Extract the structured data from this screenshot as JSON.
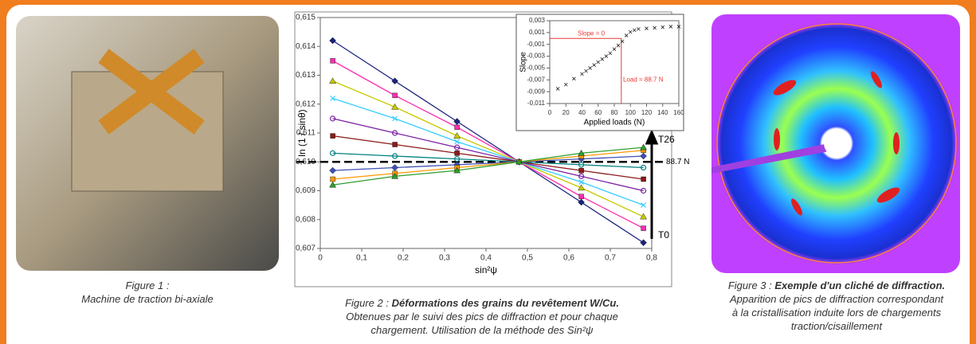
{
  "captions": [
    {
      "label": "Figure 1 : ",
      "bold": "",
      "lines": [
        "Machine de traction bi-axiale"
      ]
    },
    {
      "label": "Figure 2 : ",
      "bold": "Déformations des grains du revêtement W/Cu.",
      "lines": [
        "Obtenues par le suivi des pics de diffraction et pour chaque",
        "chargement. Utilisation de la méthode des Sin²ψ"
      ]
    },
    {
      "label": "Figure 3 : ",
      "bold": "Exemple d'un cliché de diffraction.",
      "lines": [
        "Apparition de pics de diffraction correspondant",
        "à la cristallisation induite lors de chargements",
        "traction/cisaillement"
      ]
    }
  ],
  "chart_data": [
    {
      "type": "scatter-line",
      "xlabel": "sin²ψ",
      "ylabel": "ln (1 / sinθ)",
      "x": [
        0.03,
        0.18,
        0.33,
        0.48,
        0.63,
        0.78
      ],
      "xlim": [
        0,
        0.8
      ],
      "xticks": [
        0,
        {
          "value": 0.1,
          "label": "0,1"
        },
        {
          "value": 0.2,
          "label": "0,2"
        },
        {
          "value": 0.3,
          "label": "0,3"
        },
        {
          "value": 0.4,
          "label": "0,4"
        },
        {
          "value": 0.5,
          "label": "0,5"
        },
        {
          "value": 0.6,
          "label": "0,6"
        },
        {
          "value": 0.7,
          "label": "0,7"
        },
        {
          "value": 0.8,
          "label": "0,8"
        }
      ],
      "ylim": [
        0.607,
        0.615
      ],
      "yticks": [
        {
          "value": 0.607,
          "label": "0,607"
        },
        {
          "value": 0.608,
          "label": "0,608"
        },
        {
          "value": 0.609,
          "label": "0,609"
        },
        {
          "value": 0.61,
          "label": "0,610"
        },
        {
          "value": 0.611,
          "label": "0,611"
        },
        {
          "value": 0.612,
          "label": "0,612"
        },
        {
          "value": 0.613,
          "label": "0,613"
        },
        {
          "value": 0.614,
          "label": "0,614"
        },
        {
          "value": 0.615,
          "label": "0,615"
        }
      ],
      "reference_line": 0.61,
      "annotations": [
        "T26",
        "T0",
        "88.7 N"
      ],
      "series": [
        {
          "color": "#1a237e",
          "values": [
            0.6142,
            0.6128,
            0.6114,
            0.61,
            0.6086,
            0.6072
          ]
        },
        {
          "color": "#ff2fb0",
          "values": [
            0.6135,
            0.6123,
            0.6112,
            0.61,
            0.6088,
            0.6077
          ]
        },
        {
          "color": "#c8c800",
          "values": [
            0.6128,
            0.6119,
            0.6109,
            0.61,
            0.6091,
            0.6081
          ]
        },
        {
          "color": "#33ccff",
          "values": [
            0.6122,
            0.6115,
            0.6107,
            0.61,
            0.6093,
            0.6085
          ]
        },
        {
          "color": "#7b1fa2",
          "values": [
            0.6115,
            0.611,
            0.6105,
            0.61,
            0.6095,
            0.609
          ]
        },
        {
          "color": "#8b1a1a",
          "values": [
            0.6109,
            0.6106,
            0.6103,
            0.61,
            0.6097,
            0.6094
          ]
        },
        {
          "color": "#008080",
          "values": [
            0.6103,
            0.6102,
            0.6101,
            0.61,
            0.6099,
            0.6098
          ]
        },
        {
          "color": "#3f51b5",
          "values": [
            0.6097,
            0.6098,
            0.6099,
            0.61,
            0.6101,
            0.6102
          ]
        },
        {
          "color": "#ff9800",
          "values": [
            0.6094,
            0.6096,
            0.6098,
            0.61,
            0.6102,
            0.6104
          ]
        },
        {
          "color": "#2e9e2e",
          "values": [
            0.6092,
            0.6095,
            0.6097,
            0.61,
            0.6103,
            0.6105
          ]
        }
      ]
    },
    {
      "type": "scatter",
      "xlabel": "Applied loads (N)",
      "ylabel": "Slope",
      "color": "#222222",
      "x": [
        10,
        20,
        30,
        40,
        45,
        50,
        55,
        60,
        65,
        70,
        75,
        80,
        85,
        90,
        95,
        100,
        105,
        110,
        120,
        130,
        140,
        150,
        160
      ],
      "values": [
        -0.0085,
        -0.0078,
        -0.0068,
        -0.006,
        -0.0055,
        -0.005,
        -0.0045,
        -0.004,
        -0.0035,
        -0.003,
        -0.0025,
        -0.0018,
        -0.0012,
        -0.0005,
        0.0005,
        0.0011,
        0.0014,
        0.0016,
        0.0017,
        0.0018,
        0.0019,
        0.002,
        0.002
      ],
      "xlim": [
        0,
        160
      ],
      "xticks": [
        0,
        20,
        40,
        60,
        80,
        100,
        120,
        140,
        160
      ],
      "ylim": [
        -0.011,
        0.003
      ],
      "yticks": [
        {
          "value": -0.011,
          "label": "-0,011"
        },
        {
          "value": -0.009,
          "label": "-0,009"
        },
        {
          "value": -0.007,
          "label": "-0,007"
        },
        {
          "value": -0.005,
          "label": "-0,005"
        },
        {
          "value": -0.003,
          "label": "-0,003"
        },
        {
          "value": -0.001,
          "label": "-0,001"
        },
        {
          "value": 0.001,
          "label": "0,001"
        },
        {
          "value": 0.003,
          "label": "0,003"
        }
      ],
      "hline": 0,
      "vline": 88.7,
      "line_color": "#e53935",
      "annotations": [
        "Slope = 0",
        "Load = 88.7 N"
      ]
    }
  ]
}
